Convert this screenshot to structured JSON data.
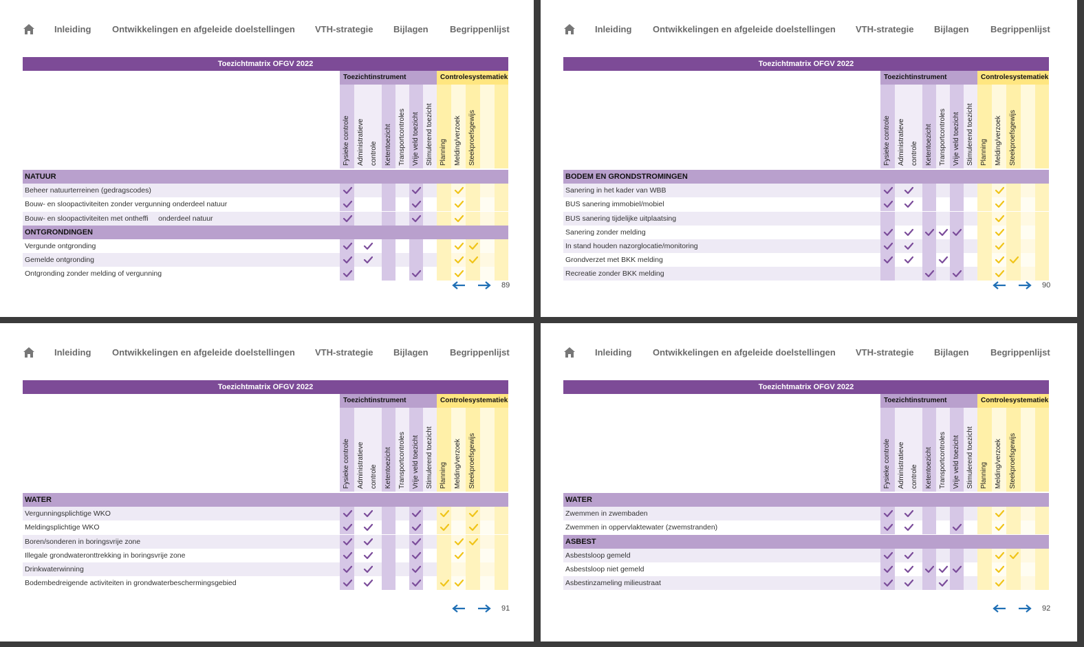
{
  "pages": [
    {
      "nav": [
        "Inleiding",
        "Ontwikkelingen en afgeleide doelstellingen",
        "VTH-strategie",
        "Bijlagen",
        "Begrippenlijst"
      ],
      "title": "Toezichtmatrix OFGV 2022",
      "groups": [
        "Toezichtinstrument",
        "Controlesystematiek"
      ],
      "columns": [
        "Fysieke controle",
        "Administratieve controle",
        "Ketentoezicht",
        "Transportcontroles",
        "Vrije veld toezicht",
        "Stimulerend toezicht",
        "Planning",
        "Melding/verzoek",
        "Steekproefsgewijs"
      ],
      "sections": [
        {
          "name": "NATUUR",
          "rows": [
            {
              "label": "Beheer natuurterreinen (gedragscodes)",
              "checks": [
                true,
                false,
                false,
                false,
                true,
                false,
                false,
                true,
                false
              ]
            },
            {
              "label": "Bouw- en sloopactiviteiten zonder vergunning onderdeel natuur",
              "checks": [
                true,
                false,
                false,
                false,
                true,
                false,
                false,
                true,
                false
              ]
            },
            {
              "label": "Bouw- en sloopactiviteiten met ontheffi     onderdeel natuur",
              "checks": [
                true,
                false,
                false,
                false,
                true,
                false,
                false,
                true,
                false
              ]
            }
          ]
        },
        {
          "name": "ONTGRONDINGEN",
          "rows": [
            {
              "label": "Vergunde ontgronding",
              "checks": [
                true,
                true,
                false,
                false,
                false,
                false,
                false,
                true,
                true
              ]
            },
            {
              "label": "Gemelde ontgronding",
              "checks": [
                true,
                true,
                false,
                false,
                false,
                false,
                false,
                true,
                true
              ]
            },
            {
              "label": "Ontgronding zonder melding of vergunning",
              "checks": [
                true,
                false,
                false,
                false,
                true,
                false,
                false,
                true,
                false
              ]
            }
          ]
        }
      ],
      "page_number": "89"
    },
    {
      "nav": [
        "Inleiding",
        "Ontwikkelingen en afgeleide doelstellingen",
        "VTH-strategie",
        "Bijlagen",
        "Begrippenlijst"
      ],
      "title": "Toezichtmatrix OFGV 2022",
      "groups": [
        "Toezichtinstrument",
        "Controlesystematiek"
      ],
      "columns": [
        "Fysieke controle",
        "Administratieve controle",
        "Ketentoezicht",
        "Transportcontroles",
        "Vrije veld toezicht",
        "Stimulerend toezicht",
        "Planning",
        "Melding/verzoek",
        "Steekproefsgewijs"
      ],
      "sections": [
        {
          "name": "BODEM EN GRONDSTROMINGEN",
          "rows": [
            {
              "label": "Sanering in het kader van WBB",
              "checks": [
                true,
                true,
                false,
                false,
                false,
                false,
                false,
                true,
                false
              ]
            },
            {
              "label": "BUS sanering immobiel/mobiel",
              "checks": [
                true,
                true,
                false,
                false,
                false,
                false,
                false,
                true,
                false
              ]
            },
            {
              "label": "BUS sanering tijdelijke uitplaatsing",
              "checks": [
                false,
                false,
                false,
                false,
                false,
                false,
                false,
                true,
                false
              ]
            },
            {
              "label": "Sanering zonder melding",
              "checks": [
                true,
                true,
                true,
                true,
                true,
                false,
                false,
                true,
                false
              ]
            },
            {
              "label": "In stand houden nazorglocatie/monitoring",
              "checks": [
                true,
                true,
                false,
                false,
                false,
                false,
                false,
                true,
                false
              ]
            },
            {
              "label": "Grondverzet met BKK melding",
              "checks": [
                true,
                true,
                false,
                true,
                false,
                false,
                false,
                true,
                true
              ]
            },
            {
              "label": "Recreatie zonder BKK melding",
              "checks": [
                false,
                false,
                true,
                false,
                true,
                false,
                false,
                true,
                false
              ]
            }
          ]
        }
      ],
      "page_number": "90"
    },
    {
      "nav": [
        "Inleiding",
        "Ontwikkelingen en afgeleide doelstellingen",
        "VTH-strategie",
        "Bijlagen",
        "Begrippenlijst"
      ],
      "title": "Toezichtmatrix OFGV 2022",
      "groups": [
        "Toezichtinstrument",
        "Controlesystematiek"
      ],
      "columns": [
        "Fysieke controle",
        "Administratieve controle",
        "Ketentoezicht",
        "Transportcontroles",
        "Vrije veld toezicht",
        "Stimulerend toezicht",
        "Planning",
        "Melding/verzoek",
        "Steekproefsgewijs"
      ],
      "sections": [
        {
          "name": "WATER",
          "rows": [
            {
              "label": "Vergunningsplichtige WKO",
              "checks": [
                true,
                true,
                false,
                false,
                true,
                false,
                true,
                false,
                true
              ]
            },
            {
              "label": "Meldingsplichtige WKO",
              "checks": [
                true,
                true,
                false,
                false,
                true,
                false,
                true,
                false,
                true
              ]
            },
            {
              "label": "Boren/sonderen in boringsvrije zone",
              "checks": [
                true,
                true,
                false,
                false,
                true,
                false,
                false,
                true,
                true
              ]
            },
            {
              "label": "Illegale grondwateronttrekking in boringsvrije zone",
              "checks": [
                true,
                true,
                false,
                false,
                true,
                false,
                false,
                true,
                false
              ]
            },
            {
              "label": "Drinkwaterwinning",
              "checks": [
                true,
                true,
                false,
                false,
                true,
                false,
                false,
                false,
                false
              ]
            },
            {
              "label": "Bodembedreigende activiteiten in grondwaterbeschermingsgebied",
              "checks": [
                true,
                true,
                false,
                false,
                true,
                false,
                true,
                true,
                false
              ]
            }
          ]
        }
      ],
      "page_number": "91"
    },
    {
      "nav": [
        "Inleiding",
        "Ontwikkelingen en afgeleide doelstellingen",
        "VTH-strategie",
        "Bijlagen",
        "Begrippenlijst"
      ],
      "title": "Toezichtmatrix OFGV 2022",
      "groups": [
        "Toezichtinstrument",
        "Controlesystematiek"
      ],
      "columns": [
        "Fysieke controle",
        "Administratieve controle",
        "Ketentoezicht",
        "Transportcontroles",
        "Vrije veld toezicht",
        "Stimulerend toezicht",
        "Planning",
        "Melding/verzoek",
        "Steekproefsgewijs"
      ],
      "sections": [
        {
          "name": "WATER",
          "rows": [
            {
              "label": "Zwemmen in zwembaden",
              "checks": [
                true,
                true,
                false,
                false,
                false,
                false,
                false,
                true,
                false
              ]
            },
            {
              "label": "Zwemmen in oppervlaktewater (zwemstranden)",
              "checks": [
                true,
                true,
                false,
                false,
                true,
                false,
                false,
                true,
                false
              ]
            }
          ]
        },
        {
          "name": "ASBEST",
          "rows": [
            {
              "label": "Asbestsloop gemeld",
              "checks": [
                true,
                true,
                false,
                false,
                false,
                false,
                false,
                true,
                true
              ]
            },
            {
              "label": "Asbestsloop niet gemeld",
              "checks": [
                true,
                true,
                true,
                true,
                true,
                false,
                false,
                true,
                false
              ]
            },
            {
              "label": "Asbestinzameling milieustraat",
              "checks": [
                true,
                true,
                false,
                true,
                false,
                false,
                false,
                true,
                false
              ]
            }
          ]
        }
      ],
      "page_number": "92"
    }
  ]
}
